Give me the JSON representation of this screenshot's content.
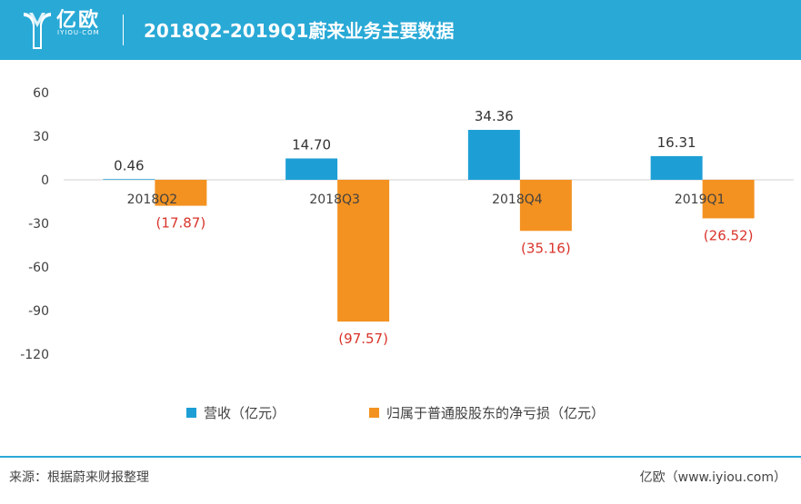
{
  "header": {
    "brand_cn": "亿欧",
    "brand_en": "IYIOU·COM",
    "title": "2018Q2-2019Q1蔚来业务主要数据"
  },
  "chart_data": {
    "type": "bar",
    "title": "2018Q2-2019Q1蔚来业务主要数据",
    "categories": [
      "2018Q2",
      "2018Q3",
      "2018Q4",
      "2019Q1"
    ],
    "series": [
      {
        "name": "营收（亿元）",
        "color": "#1d9fd6",
        "values": [
          0.46,
          14.7,
          34.36,
          16.31
        ],
        "labels": [
          "0.46",
          "14.70",
          "34.36",
          "16.31"
        ],
        "label_color": "#333333"
      },
      {
        "name": "归属于普通股股东的净亏损（亿元）",
        "color": "#f39221",
        "values": [
          -17.87,
          -97.57,
          -35.16,
          -26.52
        ],
        "labels": [
          "(17.87)",
          "(97.57)",
          "(35.16)",
          "(26.52)"
        ],
        "label_color": "#d9342b"
      }
    ],
    "yticks": [
      60,
      30,
      0,
      -30,
      -60,
      -90,
      -120
    ],
    "ylim": [
      -120,
      60
    ],
    "xlabel": "",
    "ylabel": "",
    "grid": false,
    "legend_position": "bottom"
  },
  "footer": {
    "source": "来源：根据蔚来财报整理",
    "site": "亿欧（www.iyiou.com）"
  },
  "colors": {
    "header_bg": "#29a9d6",
    "axis": "#d0d0d0"
  }
}
